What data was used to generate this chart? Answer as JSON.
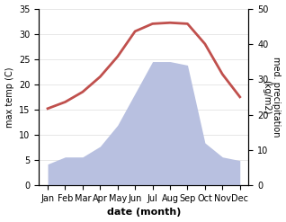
{
  "months": [
    "Jan",
    "Feb",
    "Mar",
    "Apr",
    "May",
    "Jun",
    "Jul",
    "Aug",
    "Sep",
    "Oct",
    "Nov",
    "Dec"
  ],
  "temperature": [
    15.2,
    16.5,
    18.5,
    21.5,
    25.5,
    30.5,
    32.0,
    32.2,
    32.0,
    28.0,
    22.0,
    17.5
  ],
  "precipitation": [
    6,
    8,
    8,
    11,
    17,
    26,
    35,
    35,
    34,
    12,
    8,
    7
  ],
  "temp_color": "#c0504d",
  "precip_fill_color": "#b8c0e0",
  "temp_ylim": [
    0,
    35
  ],
  "precip_ylim": [
    0,
    50
  ],
  "temp_ylabel": "max temp (C)",
  "precip_ylabel": "med. precipitation\n(kg/m2)",
  "xlabel": "date (month)",
  "temp_yticks": [
    0,
    5,
    10,
    15,
    20,
    25,
    30,
    35
  ],
  "precip_yticks": [
    0,
    10,
    20,
    30,
    40,
    50
  ],
  "tick_fontsize": 7,
  "label_fontsize": 7,
  "xlabel_fontsize": 8
}
